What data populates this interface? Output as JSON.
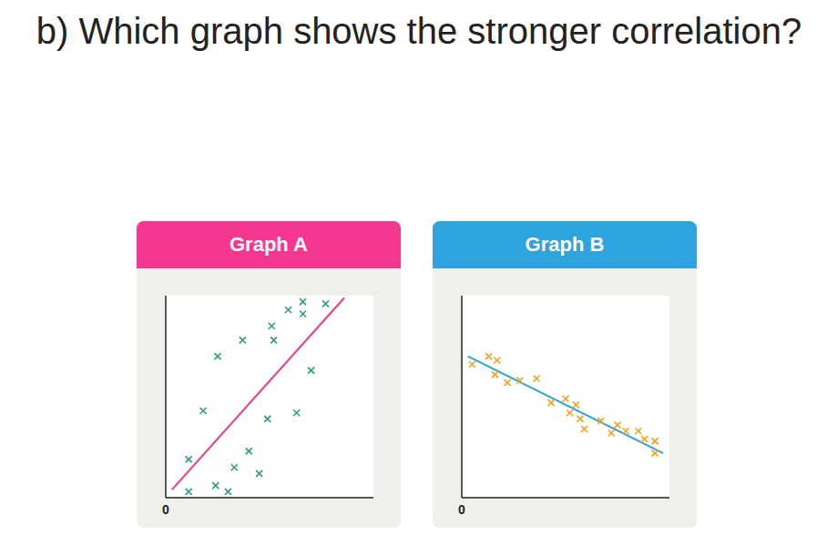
{
  "heading": "b) Which graph shows the stronger correlation?",
  "chart_data": [
    {
      "type": "scatter",
      "title": "Graph A",
      "x": [
        5.9,
        6.6,
        7.7,
        6.6,
        5.1,
        5.2,
        3.7,
        2.5,
        7.0,
        1.8,
        4.9,
        6.3,
        4.0,
        1.1,
        3.3,
        4.5,
        1.1,
        2.4,
        3.0
      ],
      "values": [
        9.3,
        9.7,
        9.6,
        9.1,
        8.5,
        7.8,
        7.8,
        7.0,
        6.3,
        4.3,
        3.9,
        4.2,
        2.3,
        1.9,
        1.5,
        1.2,
        0.3,
        0.6,
        0.3
      ],
      "color": "#2e9c86",
      "marker": "x",
      "trend_line": {
        "x": [
          0.3,
          8.6
        ],
        "values": [
          0.4,
          9.9
        ],
        "color": "#ee3a8c"
      },
      "xlim": [
        0,
        10
      ],
      "ylim": [
        0,
        10
      ],
      "xticks": [
        0
      ],
      "yticks": [
        0
      ],
      "tick_labels": "x"
    },
    {
      "type": "scatter",
      "title": "Graph B",
      "x": [
        0.5,
        1.3,
        1.7,
        1.6,
        2.2,
        2.8,
        3.6,
        4.3,
        5.0,
        5.5,
        5.2,
        5.7,
        5.9,
        6.7,
        7.5,
        7.2,
        7.9,
        8.5,
        8.8,
        9.3,
        9.3
      ],
      "values": [
        6.6,
        7.0,
        6.8,
        6.1,
        5.7,
        5.8,
        5.9,
        4.7,
        4.9,
        4.6,
        4.2,
        3.9,
        3.4,
        3.8,
        3.6,
        3.2,
        3.3,
        3.3,
        2.9,
        2.8,
        2.2
      ],
      "color": "#f5a01e",
      "marker": "x",
      "trend_line": {
        "x": [
          0.3,
          9.7
        ],
        "values": [
          7.0,
          2.2
        ],
        "color": "#2aa3dc"
      },
      "xlim": [
        0,
        10
      ],
      "ylim": [
        0,
        10
      ],
      "xticks": [
        0
      ],
      "yticks": [
        0
      ],
      "tick_labels": "x"
    }
  ]
}
